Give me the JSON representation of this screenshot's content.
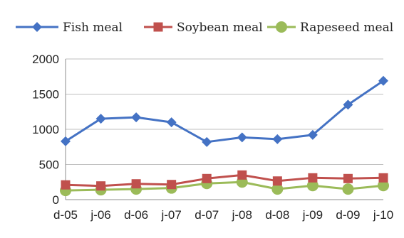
{
  "chart_data": {
    "type": "line",
    "categories": [
      "d-05",
      "j-06",
      "d-06",
      "j-07",
      "d-07",
      "j-08",
      "d-08",
      "j-09",
      "d-09",
      "j-10"
    ],
    "series": [
      {
        "name": "Fish meal",
        "color": "#4472C4",
        "marker": "diamond",
        "values": [
          830,
          1150,
          1170,
          1100,
          820,
          885,
          860,
          920,
          1350,
          1690
        ]
      },
      {
        "name": "Soybean meal",
        "color": "#C0504D",
        "marker": "square",
        "values": [
          210,
          195,
          225,
          215,
          300,
          350,
          265,
          310,
          300,
          310
        ]
      },
      {
        "name": "Rapeseed meal",
        "color": "#9BBB59",
        "marker": "circle",
        "values": [
          130,
          140,
          150,
          165,
          230,
          250,
          150,
          200,
          150,
          200
        ]
      }
    ],
    "yticks": [
      "0",
      "500",
      "1000",
      "1500",
      "2000"
    ],
    "ylim": [
      0,
      2000
    ],
    "grid": true,
    "legend_position": "top"
  }
}
